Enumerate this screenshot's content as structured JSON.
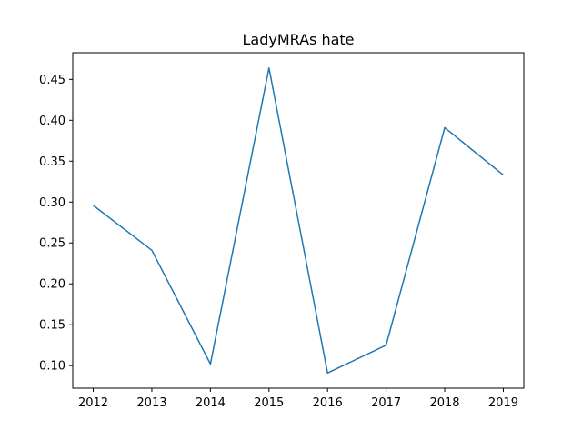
{
  "chart_data": {
    "type": "line",
    "title": "LadyMRAs hate",
    "xlabel": "",
    "ylabel": "",
    "x": [
      2012,
      2013,
      2014,
      2015,
      2016,
      2017,
      2018,
      2019
    ],
    "series": [
      {
        "values": [
          0.296,
          0.241,
          0.102,
          0.464,
          0.091,
          0.125,
          0.391,
          0.333
        ]
      }
    ],
    "xlim": [
      2011.65,
      2019.35
    ],
    "ylim": [
      0.0724,
      0.4826
    ],
    "x_ticks": [
      "2012",
      "2013",
      "2014",
      "2015",
      "2016",
      "2017",
      "2018",
      "2019"
    ],
    "y_ticks": [
      "0.10",
      "0.15",
      "0.20",
      "0.25",
      "0.30",
      "0.35",
      "0.40",
      "0.45"
    ],
    "grid": false,
    "legend": "none",
    "line_color": "#1f77b4"
  }
}
